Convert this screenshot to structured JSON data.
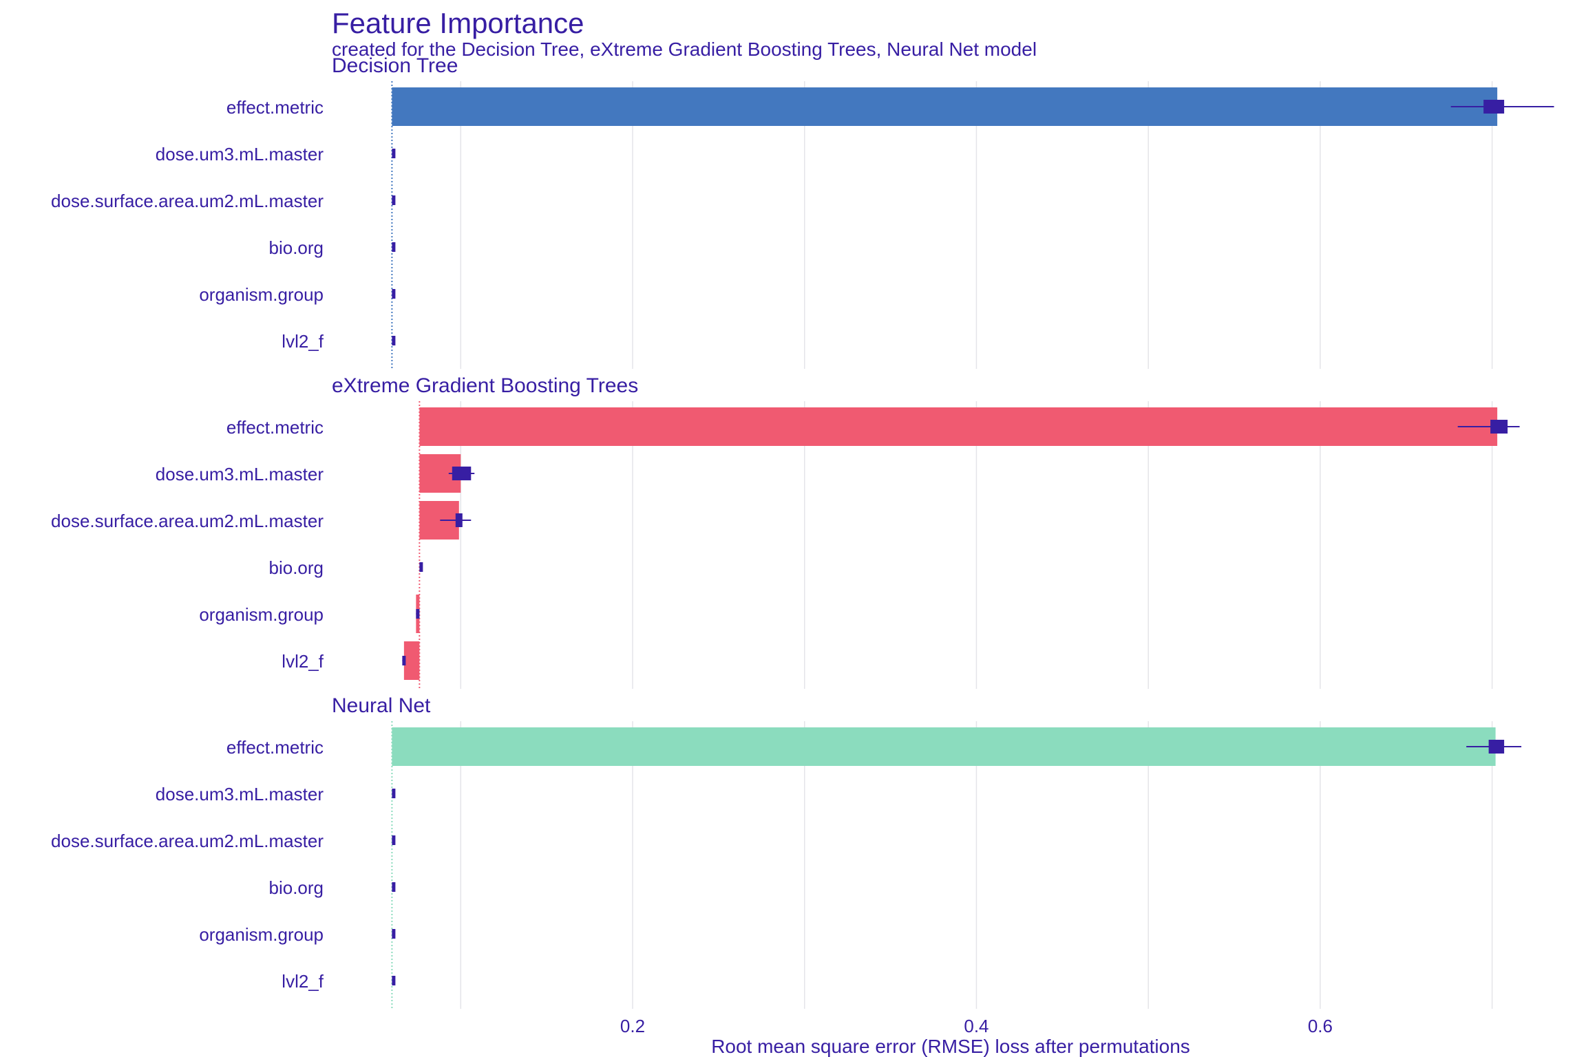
{
  "title": "Feature Importance",
  "subtitle": "created for the Decision Tree, eXtreme Gradient Boosting Trees, Neural Net model",
  "colors": {
    "text": "#371ea3",
    "grid": "#e4e4e9",
    "error": "#371ea3",
    "dt": "#4378bf",
    "xgb": "#f05a71",
    "nn": "#8bdcbe"
  },
  "chart_data": {
    "type": "bar",
    "orientation": "horizontal",
    "xlabel": "Root mean square error (RMSE) loss after permutations",
    "xlim": [
      0.025,
      0.745
    ],
    "x_ticks": [
      0.2,
      0.4,
      0.6
    ],
    "x_tick_labels": [
      "0.2",
      "0.4",
      "0.6"
    ],
    "grid": true,
    "features": [
      "effect.metric",
      "dose.um3.mL.master",
      "dose.surface.area.um2.mL.master",
      "bio.org",
      "organism.group",
      "lvl2_f"
    ],
    "panels": [
      {
        "name": "Decision Tree",
        "color_key": "dt",
        "baseline": 0.06,
        "values": [
          0.703,
          0.06,
          0.06,
          0.06,
          0.06,
          0.06
        ],
        "box_low": [
          0.695,
          0.06,
          0.06,
          0.06,
          0.06,
          0.06
        ],
        "box_high": [
          0.707,
          0.0605,
          0.0605,
          0.0605,
          0.0605,
          0.0605
        ],
        "whisker_low": [
          0.676,
          0.06,
          0.06,
          0.06,
          0.06,
          0.06
        ],
        "whisker_high": [
          0.736,
          0.0605,
          0.0605,
          0.0605,
          0.0605,
          0.0605
        ]
      },
      {
        "name": "eXtreme Gradient Boosting Trees",
        "color_key": "xgb",
        "baseline": 0.076,
        "values": [
          0.703,
          0.1,
          0.099,
          0.076,
          0.074,
          0.067
        ],
        "box_low": [
          0.699,
          0.095,
          0.097,
          0.076,
          0.074,
          0.066
        ],
        "box_high": [
          0.709,
          0.106,
          0.101,
          0.077,
          0.075,
          0.067
        ],
        "whisker_low": [
          0.68,
          0.093,
          0.088,
          0.076,
          0.074,
          0.066
        ],
        "whisker_high": [
          0.716,
          0.108,
          0.106,
          0.077,
          0.075,
          0.067
        ]
      },
      {
        "name": "Neural Net",
        "color_key": "nn",
        "baseline": 0.06,
        "values": [
          0.702,
          0.06,
          0.06,
          0.06,
          0.06,
          0.06
        ],
        "box_low": [
          0.698,
          0.06,
          0.06,
          0.06,
          0.06,
          0.06
        ],
        "box_high": [
          0.707,
          0.0605,
          0.0605,
          0.0605,
          0.0605,
          0.0605
        ],
        "whisker_low": [
          0.685,
          0.06,
          0.06,
          0.06,
          0.06,
          0.06
        ],
        "whisker_high": [
          0.717,
          0.0605,
          0.0605,
          0.0605,
          0.0605,
          0.0605
        ]
      }
    ]
  }
}
